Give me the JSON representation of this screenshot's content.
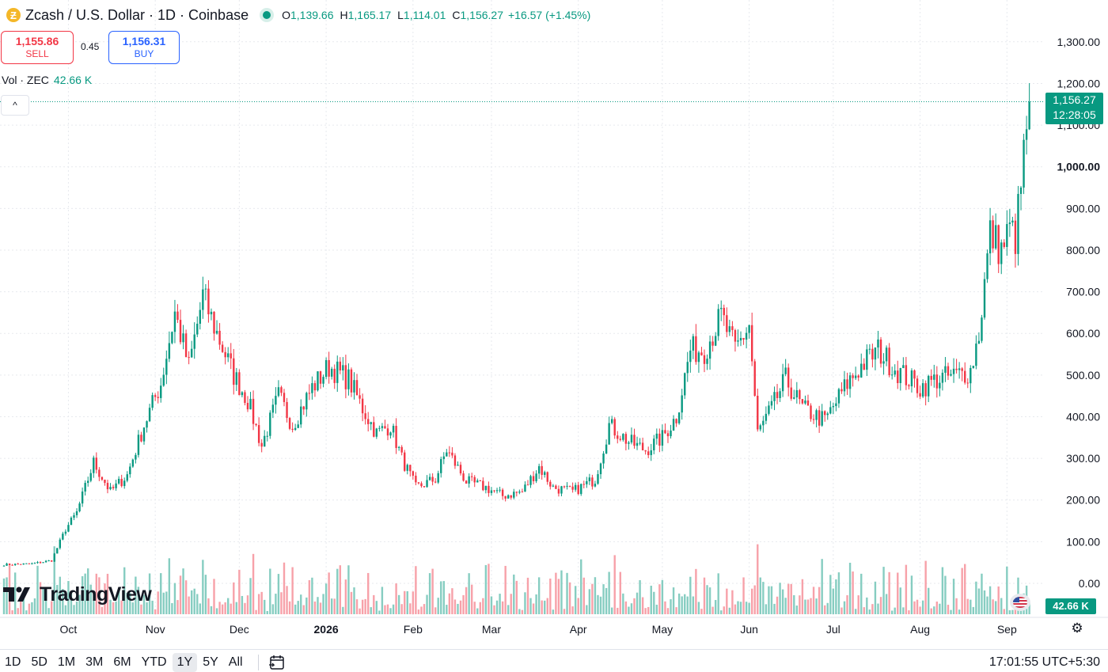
{
  "header": {
    "coin_glyph": "Ƶ",
    "title": "Zcash / U.S. Dollar · 1D · Coinbase",
    "ohlc": [
      {
        "label": "O",
        "value": "1,139.66"
      },
      {
        "label": "H",
        "value": "1,165.17"
      },
      {
        "label": "L",
        "value": "1,114.01"
      },
      {
        "label": "C",
        "value": "1,156.27"
      }
    ],
    "change": "+16.57 (+1.45%)"
  },
  "trade": {
    "sell_price": "1,155.86",
    "sell_label": "SELL",
    "spread": "0.45",
    "buy_price": "1,156.31",
    "buy_label": "BUY"
  },
  "volume_legend": {
    "label": "Vol · ZEC",
    "value": "42.66 K"
  },
  "collapse_glyph": "^",
  "logo_text": "TradingView",
  "last_price": {
    "price": "1,156.27",
    "countdown": "12:28:05"
  },
  "last_volume": "42.66 K",
  "settings_glyph": "⚙",
  "bottom_bar": {
    "ranges": [
      "1D",
      "5D",
      "1M",
      "3M",
      "6M",
      "YTD",
      "1Y",
      "5Y",
      "All"
    ],
    "active_range": "1Y",
    "clock": "17:01:55 UTC+5:30"
  },
  "colors": {
    "up": "#089981",
    "down": "#f23645",
    "up_volume": "#86cdc1",
    "down_volume": "#f7a1a9",
    "grid": "#e7e9ee"
  },
  "chart_data": {
    "type": "candlestick",
    "symbol": "ZEC/USD",
    "interval": "1D",
    "y_ticks": [
      "1,300.00",
      "1,200.00",
      "1,100.00",
      "1,000.00",
      "900.00",
      "800.00",
      "700.00",
      "600.00",
      "500.00",
      "400.00",
      "300.00",
      "200.00",
      "100.00",
      "0.00"
    ],
    "ylim": [
      0,
      1300
    ],
    "x_ticks": [
      {
        "label": "Oct",
        "x": "2025-10-01",
        "bold": false
      },
      {
        "label": "Nov",
        "x": "2025-11-01",
        "bold": false
      },
      {
        "label": "Dec",
        "x": "2025-12-01",
        "bold": false
      },
      {
        "label": "2026",
        "x": "2026-01-01",
        "bold": true
      },
      {
        "label": "Feb",
        "x": "2026-02-01",
        "bold": false
      },
      {
        "label": "Mar",
        "x": "2026-03-01",
        "bold": false
      },
      {
        "label": "Apr",
        "x": "2026-04-01",
        "bold": false
      },
      {
        "label": "May",
        "x": "2026-05-01",
        "bold": false
      },
      {
        "label": "Jun",
        "x": "2026-06-01",
        "bold": false
      },
      {
        "label": "Jul",
        "x": "2026-07-01",
        "bold": false
      },
      {
        "label": "Aug",
        "x": "2026-08-01",
        "bold": false
      },
      {
        "label": "Sep",
        "x": "2026-09-01",
        "bold": false
      }
    ],
    "last_close": 1156.27,
    "grid": true,
    "price_path": [
      {
        "x": "2025-09-08",
        "y": 45
      },
      {
        "x": "2025-09-18",
        "y": 47
      },
      {
        "x": "2025-09-25",
        "y": 55
      },
      {
        "x": "2025-09-30",
        "y": 130
      },
      {
        "x": "2025-10-04",
        "y": 170
      },
      {
        "x": "2025-10-10",
        "y": 290
      },
      {
        "x": "2025-10-16",
        "y": 220
      },
      {
        "x": "2025-10-22",
        "y": 260
      },
      {
        "x": "2025-10-28",
        "y": 380
      },
      {
        "x": "2025-11-03",
        "y": 480
      },
      {
        "x": "2025-11-08",
        "y": 650
      },
      {
        "x": "2025-11-13",
        "y": 520
      },
      {
        "x": "2025-11-18",
        "y": 690
      },
      {
        "x": "2025-11-23",
        "y": 600
      },
      {
        "x": "2025-11-29",
        "y": 500
      },
      {
        "x": "2025-12-04",
        "y": 440
      },
      {
        "x": "2025-12-09",
        "y": 330
      },
      {
        "x": "2025-12-15",
        "y": 450
      },
      {
        "x": "2025-12-20",
        "y": 380
      },
      {
        "x": "2025-12-27",
        "y": 470
      },
      {
        "x": "2026-01-02",
        "y": 520
      },
      {
        "x": "2026-01-09",
        "y": 490
      },
      {
        "x": "2026-01-14",
        "y": 420
      },
      {
        "x": "2026-01-19",
        "y": 360
      },
      {
        "x": "2026-01-24",
        "y": 380
      },
      {
        "x": "2026-01-28",
        "y": 300
      },
      {
        "x": "2026-02-02",
        "y": 230
      },
      {
        "x": "2026-02-09",
        "y": 250
      },
      {
        "x": "2026-02-13",
        "y": 320
      },
      {
        "x": "2026-02-20",
        "y": 245
      },
      {
        "x": "2026-02-27",
        "y": 230
      },
      {
        "x": "2026-03-05",
        "y": 210
      },
      {
        "x": "2026-03-12",
        "y": 220
      },
      {
        "x": "2026-03-18",
        "y": 280
      },
      {
        "x": "2026-03-23",
        "y": 230
      },
      {
        "x": "2026-03-30",
        "y": 220
      },
      {
        "x": "2026-04-07",
        "y": 250
      },
      {
        "x": "2026-04-12",
        "y": 380
      },
      {
        "x": "2026-04-19",
        "y": 340
      },
      {
        "x": "2026-04-25",
        "y": 320
      },
      {
        "x": "2026-05-01",
        "y": 350
      },
      {
        "x": "2026-05-06",
        "y": 400
      },
      {
        "x": "2026-05-11",
        "y": 560
      },
      {
        "x": "2026-05-16",
        "y": 560
      },
      {
        "x": "2026-05-22",
        "y": 640
      },
      {
        "x": "2026-05-27",
        "y": 560
      },
      {
        "x": "2026-06-01",
        "y": 620
      },
      {
        "x": "2026-06-04",
        "y": 360
      },
      {
        "x": "2026-06-09",
        "y": 420
      },
      {
        "x": "2026-06-14",
        "y": 490
      },
      {
        "x": "2026-06-20",
        "y": 420
      },
      {
        "x": "2026-06-28",
        "y": 390
      },
      {
        "x": "2026-07-06",
        "y": 480
      },
      {
        "x": "2026-07-12",
        "y": 530
      },
      {
        "x": "2026-07-17",
        "y": 560
      },
      {
        "x": "2026-07-24",
        "y": 510
      },
      {
        "x": "2026-08-01",
        "y": 470
      },
      {
        "x": "2026-08-07",
        "y": 490
      },
      {
        "x": "2026-08-14",
        "y": 500
      },
      {
        "x": "2026-08-19",
        "y": 510
      },
      {
        "x": "2026-08-22",
        "y": 600
      },
      {
        "x": "2026-08-26",
        "y": 840
      },
      {
        "x": "2026-08-30",
        "y": 800
      },
      {
        "x": "2026-09-02",
        "y": 850
      },
      {
        "x": "2026-09-04",
        "y": 830
      },
      {
        "x": "2026-09-06",
        "y": 950
      },
      {
        "x": "2026-09-08",
        "y": 1100
      },
      {
        "x": "2026-09-09",
        "y": 1156
      }
    ]
  }
}
